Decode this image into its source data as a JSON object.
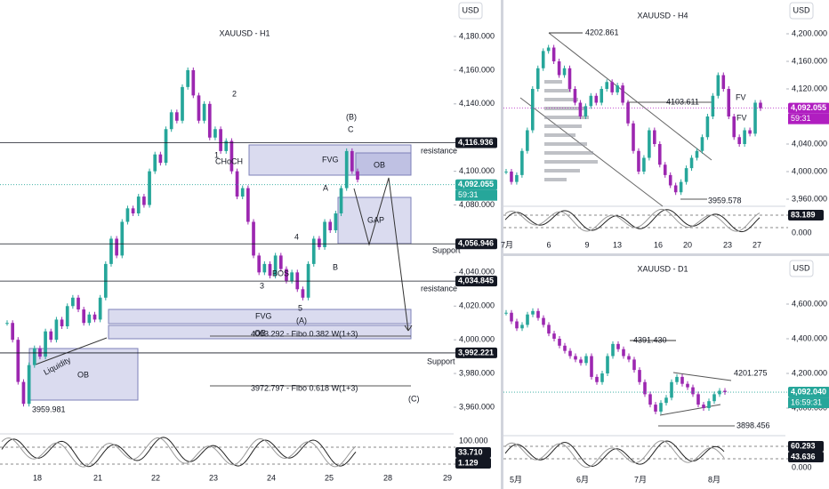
{
  "panels": [
    {
      "title": "XAUUSD - H1",
      "currency": "USD",
      "up_color": "#26a69a",
      "down_color": "#9c27b0",
      "price_ticks": [
        {
          "value": 4180,
          "label": "4,180.000"
        },
        {
          "value": 4160,
          "label": "4,160.000"
        },
        {
          "value": 4140,
          "label": "4,140.000"
        },
        {
          "value": 4100,
          "label": "4,100.000"
        },
        {
          "value": 4080,
          "label": "4,080.000"
        },
        {
          "value": 4040,
          "label": "4,040.000"
        },
        {
          "value": 4020,
          "label": "4,020.000"
        },
        {
          "value": 4000,
          "label": "4,000.000"
        },
        {
          "value": 3980,
          "label": "3,980.000"
        },
        {
          "value": 3960,
          "label": "3,960.000"
        }
      ],
      "price_badges": [
        {
          "value": 4116.936,
          "label": "4,116.936",
          "color": "#131722"
        },
        {
          "value": 4092.055,
          "label": "4,092.055",
          "color": "#26a69a"
        },
        {
          "value": 4056.946,
          "label": "4,056.946",
          "color": "#131722"
        },
        {
          "value": 4034.845,
          "label": "4,034.845",
          "color": "#131722"
        },
        {
          "value": 3992.221,
          "label": "3,992.221",
          "color": "#131722"
        }
      ],
      "countdown": "59:31",
      "time_ticks": [
        "18",
        "21",
        "22",
        "23",
        "24",
        "25",
        "28",
        "29"
      ],
      "osc_ticks": [
        "100.000"
      ],
      "osc_badges": [
        "33.710",
        "1.129"
      ],
      "annotations": [
        "resistance",
        "Support",
        "resistance",
        "Support",
        "FVG",
        "OB",
        "GAP",
        "CHoCH",
        "1",
        "2",
        "3",
        "4",
        "5",
        "A",
        "B",
        "(B)",
        "C",
        "(A)",
        "(C)",
        "BOS",
        "FVG",
        "OB",
        "4003.292 - Fibo 0.382 W(1+3)",
        "3972.797 - Fibo 0.618 W(1+3)",
        "OB",
        "Liquidity",
        "3959.981"
      ],
      "closes": [
        4010,
        4000,
        3975,
        3962,
        3985,
        3995,
        3990,
        4005,
        4000,
        4012,
        4008,
        4020,
        4025,
        4018,
        4010,
        4015,
        4012,
        4025,
        4045,
        4060,
        4050,
        4070,
        4078,
        4075,
        4085,
        4080,
        4100,
        4110,
        4105,
        4125,
        4135,
        4130,
        4150,
        4160,
        4145,
        4130,
        4140,
        4120,
        4125,
        4112,
        4118,
        4100,
        4085,
        4090,
        4070,
        4050,
        4040,
        4045,
        4038,
        4050,
        4042,
        4035,
        4040,
        4030,
        4025,
        4045,
        4060,
        4055,
        4070,
        4065,
        4075,
        4090,
        4112,
        4100,
        4095
      ]
    },
    {
      "title": "XAUUSD - H4",
      "currency": "USD",
      "up_color": "#26a69a",
      "down_color": "#9c27b0",
      "price_ticks": [
        {
          "value": 4200,
          "label": "4,200.000"
        },
        {
          "value": 4160,
          "label": "4,160.000"
        },
        {
          "value": 4120,
          "label": "4,120.000"
        },
        {
          "value": 4040,
          "label": "4,040.000"
        },
        {
          "value": 4000,
          "label": "4,000.000"
        },
        {
          "value": 3960,
          "label": "3,960.000"
        }
      ],
      "price_badges": [
        {
          "value": 4092.055,
          "label": "4,092.055",
          "color": "#b01ec0"
        }
      ],
      "countdown": "59:31",
      "time_ticks": [
        "7月",
        "6",
        "9",
        "13",
        "16",
        "20",
        "23",
        "27"
      ],
      "osc_ticks": [
        "0.000"
      ],
      "osc_badges": [
        "83.189"
      ],
      "annotations": [
        "4202.861",
        "4103.611",
        "3959.578",
        "FV",
        "FV"
      ],
      "closes": [
        4000,
        3985,
        3995,
        4030,
        4060,
        4120,
        4150,
        4175,
        4180,
        4160,
        4140,
        4150,
        4120,
        4100,
        4080,
        4095,
        4110,
        4100,
        4120,
        4130,
        4115,
        4125,
        4100,
        4070,
        4030,
        4000,
        4020,
        4060,
        4040,
        4010,
        3995,
        3980,
        3970,
        3985,
        4005,
        4020,
        4030,
        4050,
        4080,
        4110,
        4140,
        4120,
        4080,
        4050,
        4040,
        4060,
        4055,
        4100,
        4092
      ]
    },
    {
      "title": "XAUUSD - D1",
      "currency": "USD",
      "up_color": "#26a69a",
      "down_color": "#9c27b0",
      "price_ticks": [
        {
          "value": 4600,
          "label": "4,600.000"
        },
        {
          "value": 4400,
          "label": "4,400.000"
        },
        {
          "value": 4200,
          "label": "4,200.000"
        },
        {
          "value": 4000,
          "label": "4,000.000"
        }
      ],
      "price_badges": [
        {
          "value": 4092.04,
          "label": "4,092.040",
          "color": "#26a69a"
        }
      ],
      "countdown": "16:59:31",
      "time_ticks": [
        "5月",
        "6月",
        "7月",
        "8月"
      ],
      "osc_ticks": [
        "0.000"
      ],
      "osc_badges": [
        "60.293",
        "43.636"
      ],
      "annotations": [
        "4391.430",
        "4201.275",
        "3898.456"
      ],
      "closes": [
        4550,
        4500,
        4460,
        4480,
        4540,
        4560,
        4520,
        4480,
        4430,
        4400,
        4360,
        4330,
        4300,
        4280,
        4260,
        4300,
        4180,
        4150,
        4200,
        4300,
        4370,
        4340,
        4300,
        4280,
        4220,
        4150,
        4080,
        4020,
        3980,
        4030,
        4060,
        4150,
        4180,
        4140,
        4120,
        4080,
        4020,
        4000,
        4040,
        4080,
        4100,
        4092
      ]
    }
  ]
}
